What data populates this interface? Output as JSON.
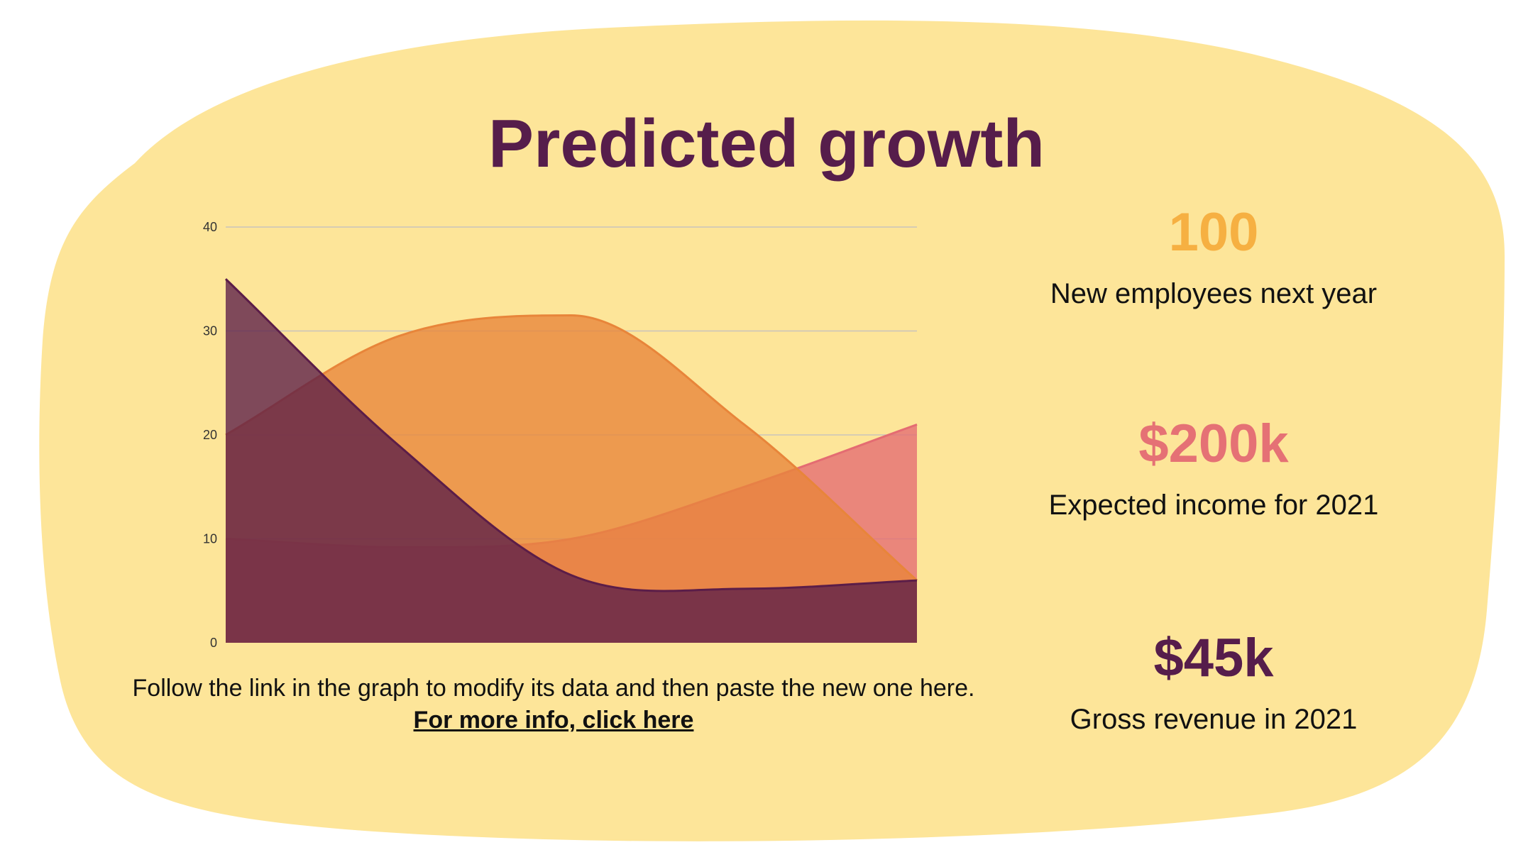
{
  "colors": {
    "background_blob": "#fde599",
    "title": "#561d4b",
    "series_dark": "#5b1d48",
    "series_orange": "#e8853a",
    "series_pink": "#e46c72",
    "stat1": "#f6b042",
    "stat2": "#e57175",
    "stat3": "#561d4b"
  },
  "title": "Predicted growth",
  "chart_data": {
    "type": "area",
    "x": [
      0,
      1,
      2,
      3,
      4
    ],
    "ylim": [
      0,
      40
    ],
    "yticks": [
      "0",
      "10",
      "20",
      "30",
      "40"
    ],
    "grid": true,
    "legend": "none",
    "series": [
      {
        "color": "#e46c72",
        "values": [
          10,
          9.2,
          10,
          15,
          21
        ]
      },
      {
        "color": "#e8853a",
        "values": [
          20,
          29.5,
          31.5,
          21,
          6
        ]
      },
      {
        "color": "#5b1d48",
        "values": [
          35,
          19,
          6.5,
          5.2,
          6
        ]
      }
    ]
  },
  "caption": {
    "text": "Follow the link in the graph to modify its data and then paste the new one here.",
    "link": "For more info, click here"
  },
  "stats": [
    {
      "value": "100",
      "label": "New employees next year"
    },
    {
      "value": "$200k",
      "label": "Expected income for 2021"
    },
    {
      "value": "$45k",
      "label": "Gross revenue in 2021"
    }
  ]
}
